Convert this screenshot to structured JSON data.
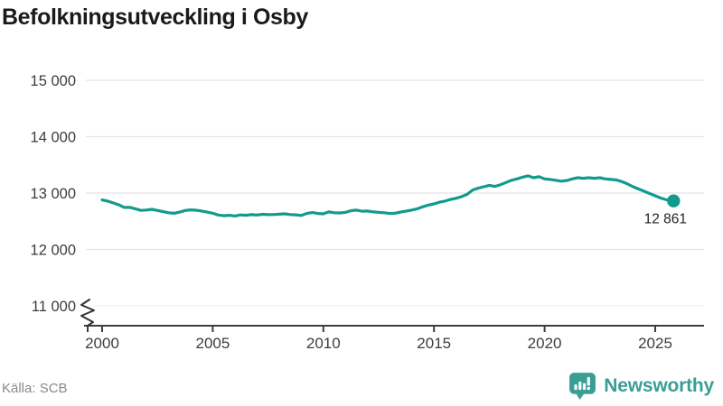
{
  "header": {
    "title": "Befolkningsutveckling i Osby"
  },
  "footer": {
    "source": "Källa: SCB",
    "logo_text": "Newsworthy"
  },
  "colors": {
    "line": "#129a8c",
    "logo": "#3a9e94",
    "grid": "#e4e4e4",
    "grid_faint": "#f1f1f1",
    "axis": "#3d3d3d",
    "tick_text": "#3d3d3d",
    "title_text": "#1a1a1a",
    "source_text": "#8a8a8a",
    "end_label_text": "#222222"
  },
  "chart_data": {
    "type": "line",
    "title": "Befolkningsutveckling i Osby",
    "xlabel": "",
    "ylabel": "",
    "grid": "horizontal",
    "legend": "none",
    "xlim": [
      2000,
      2026.6
    ],
    "ylim": [
      11000,
      15200
    ],
    "axis_break": true,
    "x_ticks": [
      {
        "value": 2000,
        "label": "2000"
      },
      {
        "value": 2005,
        "label": "2005"
      },
      {
        "value": 2010,
        "label": "2010"
      },
      {
        "value": 2015,
        "label": "2015"
      },
      {
        "value": 2020,
        "label": "2020"
      },
      {
        "value": 2025,
        "label": "2025"
      }
    ],
    "y_ticks": [
      {
        "value": 15000,
        "label": "15 000"
      },
      {
        "value": 14000,
        "label": "14 000"
      },
      {
        "value": 13000,
        "label": "13 000"
      },
      {
        "value": 12000,
        "label": "12 000"
      },
      {
        "value": 11000,
        "label": "11 000"
      }
    ],
    "series": [
      {
        "name": "Befolkning",
        "points": [
          [
            2000.0,
            12878
          ],
          [
            2000.25,
            12858
          ],
          [
            2000.5,
            12826
          ],
          [
            2000.75,
            12792
          ],
          [
            2001.0,
            12745
          ],
          [
            2001.25,
            12748
          ],
          [
            2001.5,
            12722
          ],
          [
            2001.75,
            12693
          ],
          [
            2002.0,
            12700
          ],
          [
            2002.25,
            12712
          ],
          [
            2002.5,
            12692
          ],
          [
            2002.75,
            12672
          ],
          [
            2003.0,
            12652
          ],
          [
            2003.25,
            12642
          ],
          [
            2003.5,
            12662
          ],
          [
            2003.75,
            12692
          ],
          [
            2004.0,
            12702
          ],
          [
            2004.25,
            12696
          ],
          [
            2004.5,
            12682
          ],
          [
            2004.75,
            12662
          ],
          [
            2005.0,
            12642
          ],
          [
            2005.25,
            12612
          ],
          [
            2005.5,
            12598
          ],
          [
            2005.75,
            12606
          ],
          [
            2006.0,
            12594
          ],
          [
            2006.25,
            12613
          ],
          [
            2006.5,
            12606
          ],
          [
            2006.75,
            12618
          ],
          [
            2007.0,
            12612
          ],
          [
            2007.25,
            12624
          ],
          [
            2007.5,
            12618
          ],
          [
            2007.75,
            12620
          ],
          [
            2008.0,
            12626
          ],
          [
            2008.25,
            12632
          ],
          [
            2008.5,
            12620
          ],
          [
            2008.75,
            12614
          ],
          [
            2009.0,
            12604
          ],
          [
            2009.25,
            12638
          ],
          [
            2009.5,
            12654
          ],
          [
            2009.75,
            12638
          ],
          [
            2010.0,
            12632
          ],
          [
            2010.25,
            12668
          ],
          [
            2010.5,
            12652
          ],
          [
            2010.75,
            12648
          ],
          [
            2011.0,
            12658
          ],
          [
            2011.25,
            12688
          ],
          [
            2011.5,
            12698
          ],
          [
            2011.75,
            12678
          ],
          [
            2012.0,
            12682
          ],
          [
            2012.25,
            12668
          ],
          [
            2012.5,
            12658
          ],
          [
            2012.75,
            12652
          ],
          [
            2013.0,
            12638
          ],
          [
            2013.25,
            12644
          ],
          [
            2013.5,
            12664
          ],
          [
            2013.75,
            12682
          ],
          [
            2014.0,
            12700
          ],
          [
            2014.25,
            12722
          ],
          [
            2014.5,
            12758
          ],
          [
            2014.75,
            12788
          ],
          [
            2015.0,
            12808
          ],
          [
            2015.25,
            12838
          ],
          [
            2015.5,
            12858
          ],
          [
            2015.75,
            12888
          ],
          [
            2016.0,
            12908
          ],
          [
            2016.25,
            12938
          ],
          [
            2016.5,
            12978
          ],
          [
            2016.75,
            13055
          ],
          [
            2017.0,
            13088
          ],
          [
            2017.25,
            13112
          ],
          [
            2017.5,
            13138
          ],
          [
            2017.75,
            13118
          ],
          [
            2018.0,
            13148
          ],
          [
            2018.25,
            13188
          ],
          [
            2018.5,
            13228
          ],
          [
            2018.75,
            13252
          ],
          [
            2019.0,
            13282
          ],
          [
            2019.25,
            13305
          ],
          [
            2019.5,
            13272
          ],
          [
            2019.75,
            13292
          ],
          [
            2020.0,
            13252
          ],
          [
            2020.25,
            13242
          ],
          [
            2020.5,
            13228
          ],
          [
            2020.75,
            13212
          ],
          [
            2021.0,
            13222
          ],
          [
            2021.25,
            13252
          ],
          [
            2021.5,
            13272
          ],
          [
            2021.75,
            13262
          ],
          [
            2022.0,
            13272
          ],
          [
            2022.25,
            13262
          ],
          [
            2022.5,
            13272
          ],
          [
            2022.75,
            13252
          ],
          [
            2023.0,
            13242
          ],
          [
            2023.25,
            13232
          ],
          [
            2023.5,
            13202
          ],
          [
            2023.75,
            13162
          ],
          [
            2024.0,
            13112
          ],
          [
            2024.25,
            13072
          ],
          [
            2024.5,
            13032
          ],
          [
            2024.75,
            12992
          ],
          [
            2025.0,
            12952
          ],
          [
            2025.25,
            12912
          ],
          [
            2025.5,
            12882
          ],
          [
            2025.83,
            12861
          ]
        ]
      }
    ],
    "end_point": {
      "year": 2025.83,
      "value": 12861
    },
    "end_label": "12 861"
  }
}
